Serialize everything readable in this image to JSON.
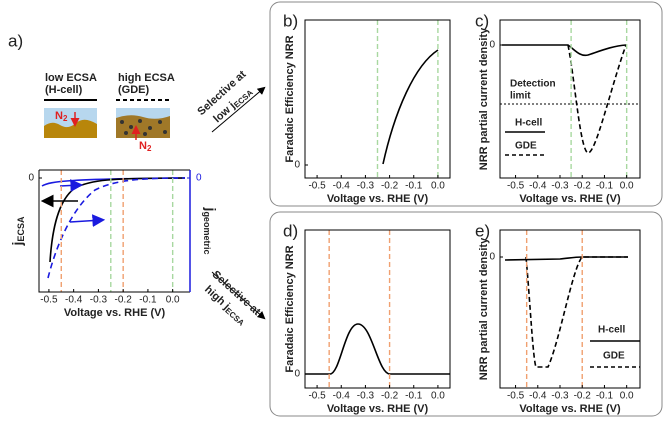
{
  "labels": {
    "a": "a)",
    "low": "low ECSA",
    "low_sub": "(H-cell)",
    "high": "high ECSA",
    "high_sub": "(GDE)",
    "n": "N",
    "n_sub": "2"
  },
  "arrows": [
    {
      "line1": "Selective at",
      "line2": "low j",
      "sub": "ECSA"
    },
    {
      "line1": "Selective at",
      "line2": "high j",
      "sub": "ECSA"
    }
  ],
  "charts": [
    {
      "type": "line",
      "xlabel": "Voltage vs. RHE (V)",
      "ylabel": "j",
      "ylabel_sub": "ECSA",
      "y2label": "j",
      "y2label_sub": "geometric",
      "xlim": [
        -0.54,
        0.07
      ],
      "xticks": [
        -0.5,
        -0.4,
        -0.3,
        -0.2,
        -0.1,
        {
          "value": 0,
          "label": "0.0"
        }
      ],
      "yticks": [
        0
      ],
      "y2ticks": [
        0
      ],
      "guides": [
        {
          "value": -0.45,
          "color": "#f0a070"
        },
        {
          "value": -0.2,
          "color": "#f0a070"
        },
        {
          "value": -0.25,
          "color": "#a8d8a0"
        },
        {
          "value": 0,
          "color": "#a8d8a0"
        }
      ]
    },
    {
      "type": "line",
      "panel": "b)",
      "xlabel": "Voltage vs. RHE (V)",
      "ylabel": "Faradaic Efficiency NRR",
      "xlim": [
        -0.55,
        0.05
      ],
      "xticks": [
        -0.5,
        -0.4,
        -0.3,
        -0.2,
        -0.1,
        {
          "value": 0,
          "label": "0.0"
        }
      ],
      "yticks": [
        0
      ],
      "guides": [
        {
          "value": -0.25,
          "color": "#a8d8a0"
        },
        {
          "value": 0,
          "color": "#a8d8a0"
        }
      ]
    },
    {
      "type": "line",
      "panel": "c)",
      "xlabel": "Voltage vs. RHE (V)",
      "ylabel": "NRR partial current density",
      "xlim": [
        -0.57,
        0.06
      ],
      "xticks": [
        -0.5,
        -0.4,
        -0.3,
        -0.2,
        -0.1,
        {
          "value": 0,
          "label": "0.0"
        }
      ],
      "yticks": [
        0
      ],
      "guides": [
        {
          "value": -0.25,
          "color": "#a8d8a0"
        },
        {
          "value": 0,
          "color": "#a8d8a0"
        }
      ],
      "annotation": [
        "Detection",
        "limit"
      ],
      "legend": [
        "H-cell",
        "GDE"
      ]
    },
    {
      "type": "line",
      "panel": "d)",
      "xlabel": "Voltage vs. RHE (V)",
      "ylabel": "Faradaic Efficiency NRR",
      "xlim": [
        -0.55,
        0.05
      ],
      "xticks": [
        -0.5,
        -0.4,
        -0.3,
        -0.2,
        -0.1,
        {
          "value": 0,
          "label": "0.0"
        }
      ],
      "yticks": [
        0
      ],
      "guides": [
        {
          "value": -0.45,
          "color": "#f0a070"
        },
        {
          "value": -0.2,
          "color": "#f0a070"
        }
      ]
    },
    {
      "type": "line",
      "panel": "e)",
      "xlabel": "Voltage vs. RHE (V)",
      "ylabel": "NRR partial current density",
      "xlim": [
        -0.57,
        0.06
      ],
      "xticks": [
        -0.5,
        -0.4,
        -0.3,
        -0.2,
        -0.1,
        {
          "value": 0,
          "label": "0.0"
        }
      ],
      "yticks": [
        0
      ],
      "guides": [
        {
          "value": -0.45,
          "color": "#f0a070"
        },
        {
          "value": -0.2,
          "color": "#f0a070"
        }
      ],
      "legend": [
        "H-cell",
        "GDE"
      ]
    }
  ]
}
